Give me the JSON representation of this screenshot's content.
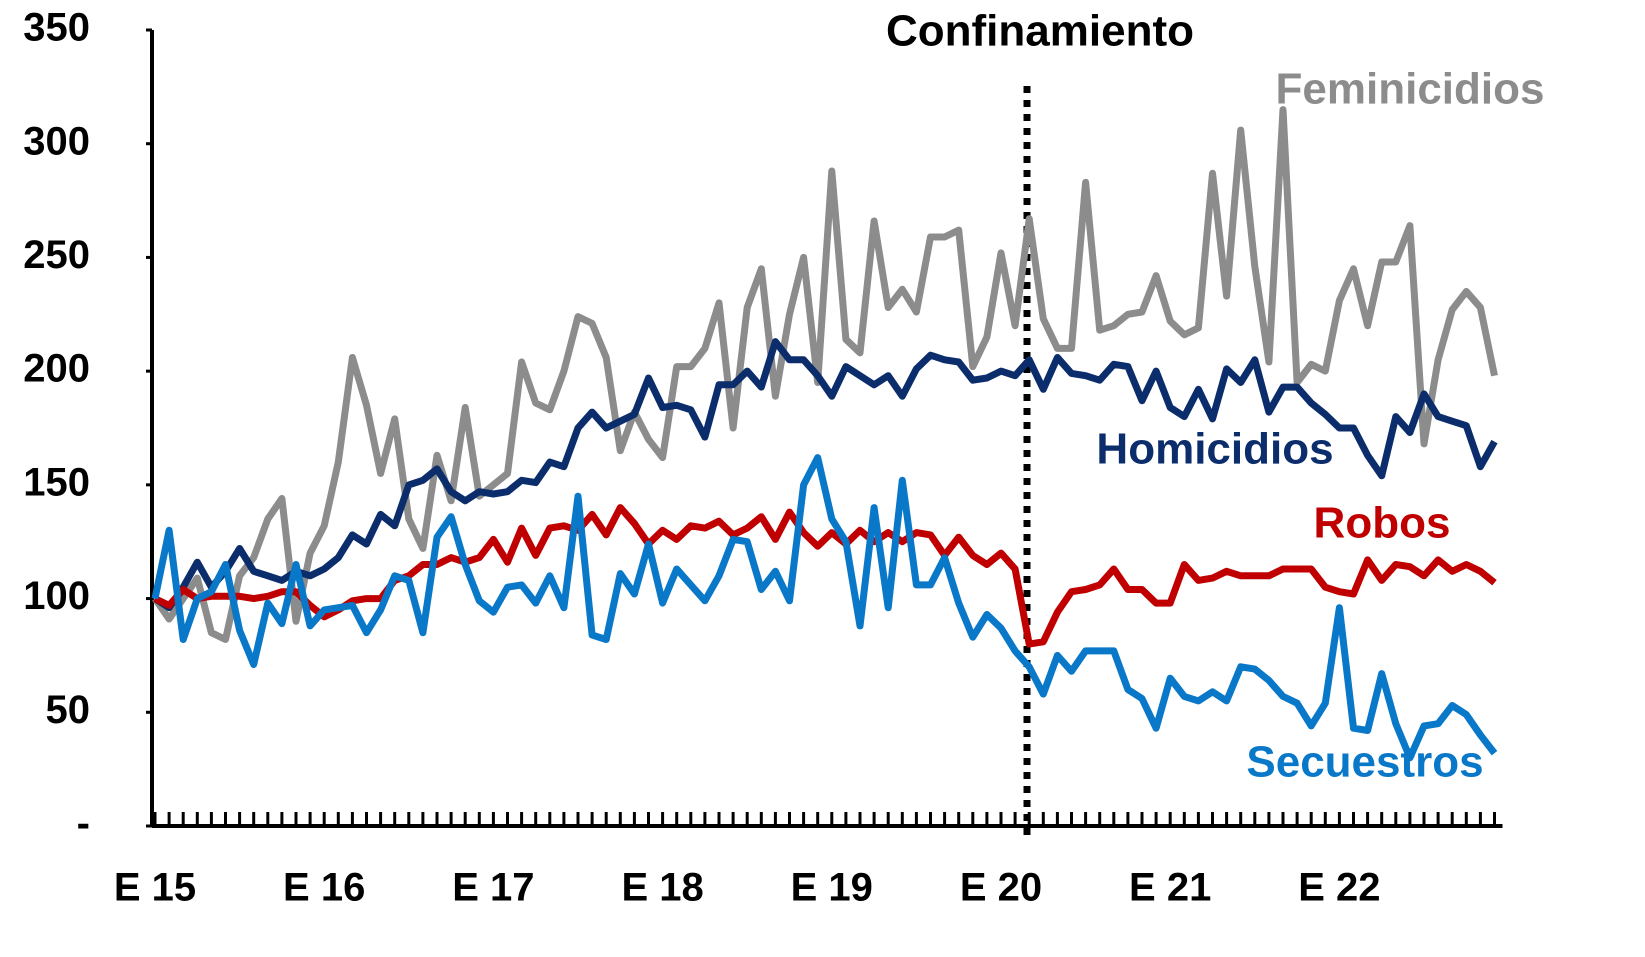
{
  "chart_data": {
    "type": "line",
    "annotation": "Confinamiento",
    "categories": [
      "E 15",
      null,
      null,
      null,
      null,
      null,
      null,
      null,
      null,
      null,
      null,
      null,
      "E 16",
      null,
      null,
      null,
      null,
      null,
      null,
      null,
      null,
      null,
      null,
      null,
      "E 17",
      null,
      null,
      null,
      null,
      null,
      null,
      null,
      null,
      null,
      null,
      null,
      "E 18",
      null,
      null,
      null,
      null,
      null,
      null,
      null,
      null,
      null,
      null,
      null,
      "E 19",
      null,
      null,
      null,
      null,
      null,
      null,
      null,
      null,
      null,
      null,
      null,
      "E 20",
      null,
      null,
      null,
      null,
      null,
      null,
      null,
      null,
      null,
      null,
      null,
      "E 21",
      null,
      null,
      null,
      null,
      null,
      null,
      null,
      null,
      null,
      null,
      null,
      "E 22",
      null,
      null,
      null,
      null,
      null,
      null,
      null,
      null,
      null,
      null,
      null
    ],
    "ylim": [
      0,
      350
    ],
    "yticks": [
      {
        "value": 0,
        "label": "-"
      },
      50,
      100,
      150,
      200,
      250,
      300,
      350
    ],
    "series": [
      {
        "name": "Feminicidios",
        "color": "#8c8c8c",
        "values": [
          100,
          91,
          100,
          109,
          85,
          82,
          110,
          118,
          135,
          144,
          90,
          120,
          132,
          160,
          206,
          185,
          155,
          179,
          135,
          122,
          163,
          143,
          184,
          145,
          150,
          155,
          204,
          186,
          183,
          200,
          224,
          221,
          206,
          165,
          182,
          170,
          162,
          202,
          202,
          210,
          230,
          175,
          228,
          245,
          189,
          225,
          250,
          195,
          288,
          214,
          208,
          266,
          228,
          236,
          226,
          259,
          259,
          262,
          202,
          215,
          252,
          220,
          267,
          223,
          210,
          210,
          283,
          218,
          220,
          225,
          226,
          242,
          222,
          216,
          219,
          287,
          233,
          306,
          246,
          204,
          315,
          195,
          203,
          200,
          231,
          245,
          220,
          248,
          248,
          264,
          168,
          205,
          227,
          235,
          228,
          198
        ]
      },
      {
        "name": "Homicidios",
        "color": "#0b2d6b",
        "values": [
          100,
          96,
          105,
          116,
          105,
          112,
          122,
          112,
          110,
          108,
          112,
          110,
          113,
          118,
          128,
          124,
          137,
          132,
          150,
          152,
          157,
          147,
          143,
          147,
          146,
          147,
          152,
          151,
          160,
          158,
          175,
          182,
          175,
          178,
          181,
          197,
          184,
          185,
          183,
          171,
          194,
          194,
          200,
          193,
          213,
          205,
          205,
          198,
          189,
          202,
          198,
          194,
          198,
          189,
          201,
          207,
          205,
          204,
          196,
          197,
          200,
          198,
          205,
          192,
          206,
          199,
          198,
          196,
          203,
          202,
          187,
          200,
          184,
          180,
          192,
          179,
          201,
          195,
          205,
          182,
          193,
          193,
          186,
          181,
          175,
          175,
          163,
          154,
          180,
          173,
          190,
          180,
          178,
          176,
          158,
          169
        ]
      },
      {
        "name": "Robos",
        "color": "#c00000",
        "values": [
          100,
          97,
          104,
          100,
          101,
          101,
          101,
          100,
          101,
          103,
          103,
          97,
          92,
          95,
          99,
          100,
          100,
          108,
          110,
          115,
          115,
          118,
          116,
          118,
          126,
          116,
          131,
          119,
          131,
          132,
          130,
          137,
          128,
          140,
          133,
          124,
          130,
          126,
          132,
          131,
          134,
          128,
          131,
          136,
          126,
          138,
          129,
          123,
          129,
          124,
          130,
          125,
          129,
          125,
          129,
          128,
          119,
          127,
          119,
          115,
          120,
          113,
          80,
          81,
          94,
          103,
          104,
          106,
          113,
          104,
          104,
          98,
          98,
          115,
          108,
          109,
          112,
          110,
          110,
          110,
          113,
          113,
          113,
          105,
          103,
          102,
          117,
          108,
          115,
          114,
          110,
          117,
          112,
          115,
          112,
          107
        ]
      },
      {
        "name": "Secuestros",
        "color": "#0a78c8",
        "values": [
          100,
          130,
          82,
          100,
          103,
          115,
          86,
          71,
          98,
          89,
          115,
          88,
          95,
          96,
          97,
          85,
          95,
          110,
          108,
          85,
          127,
          136,
          115,
          99,
          94,
          105,
          106,
          98,
          110,
          96,
          145,
          84,
          82,
          111,
          102,
          124,
          98,
          113,
          106,
          99,
          110,
          126,
          125,
          104,
          112,
          99,
          150,
          162,
          135,
          125,
          88,
          140,
          96,
          152,
          106,
          106,
          118,
          98,
          83,
          93,
          87,
          77,
          70,
          58,
          75,
          68,
          77,
          77,
          77,
          60,
          56,
          43,
          65,
          57,
          55,
          59,
          55,
          70,
          69,
          64,
          57,
          54,
          44,
          54,
          96,
          43,
          42,
          67,
          45,
          30,
          44,
          45,
          53,
          49,
          40,
          32
        ]
      }
    ]
  }
}
